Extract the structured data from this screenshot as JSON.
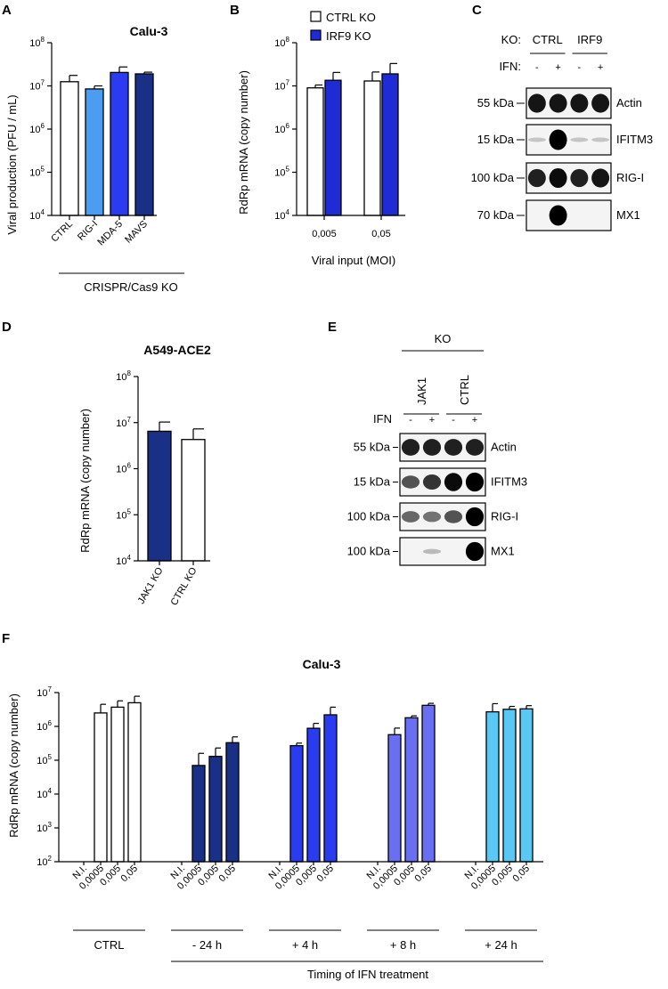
{
  "panels": {
    "A": "A",
    "B": "B",
    "C": "C",
    "D": "D",
    "E": "E",
    "F": "F"
  },
  "chart_data": [
    {
      "id": "A",
      "type": "bar",
      "title": "Calu-3",
      "ylabel": "Viral production (PFU / mL)",
      "yscale": "log",
      "ylim": [
        10000,
        100000000
      ],
      "categories": [
        "CTRL",
        "RIG-I",
        "MDA-5",
        "MAVS"
      ],
      "group_label": "CRISPR/Cas9 KO",
      "series": [
        {
          "values": [
            12500000,
            8500000,
            20500000,
            19000000
          ],
          "errors": [
            5000000,
            1500000,
            7000000,
            1800000
          ]
        }
      ],
      "colors": [
        "#ffffff",
        "#4a9df0",
        "#2b3cf0",
        "#1a2f86"
      ]
    },
    {
      "id": "B",
      "type": "bar",
      "ylabel": "RdRp mRNA (copy number)",
      "xlabel": "Viral input (MOI)",
      "yscale": "log",
      "ylim": [
        10000,
        100000000
      ],
      "categories": [
        "0,005",
        "0,05"
      ],
      "series": [
        {
          "name": "CTRL KO",
          "color": "#ffffff",
          "values": [
            9000000,
            13000000
          ],
          "errors": [
            1500000,
            8000000
          ]
        },
        {
          "name": "IRF9 KO",
          "color": "#1f2bd4",
          "values": [
            13500000,
            19000000
          ],
          "errors": [
            7000000,
            14000000
          ]
        }
      ],
      "legend": "top"
    },
    {
      "id": "D",
      "type": "bar",
      "title": "A549-ACE2",
      "ylabel": "RdRp mRNA (copy number)",
      "yscale": "log",
      "ylim": [
        10000,
        100000000
      ],
      "categories": [
        "JAK1 KO",
        "CTRL KO"
      ],
      "series": [
        {
          "values": [
            6500000,
            4300000
          ],
          "errors": [
            3800000,
            3000000
          ]
        }
      ],
      "colors": [
        "#1a2f86",
        "#ffffff"
      ]
    },
    {
      "id": "F",
      "type": "bar",
      "title": "Calu-3",
      "ylabel": "RdRp mRNA (copy number)",
      "yscale": "log",
      "ylim": [
        100,
        10000000
      ],
      "tick_labels": [
        "N.I.",
        "0,0005",
        "0,005",
        "0,05"
      ],
      "group_label": "Timing of IFN treatment",
      "groups": [
        {
          "label": "CTRL",
          "color": "#ffffff",
          "values": [
            null,
            2500000,
            3700000,
            5000000
          ],
          "errors": [
            null,
            2000000,
            2000000,
            2800000
          ]
        },
        {
          "label": "- 24 h",
          "color": "#1a2f86",
          "values": [
            null,
            70000,
            130000,
            330000
          ],
          "errors": [
            null,
            90000,
            100000,
            160000
          ]
        },
        {
          "label": "+ 4 h",
          "color": "#2b3cf0",
          "values": [
            null,
            270000,
            880000,
            2200000
          ],
          "errors": [
            null,
            50000,
            350000,
            1500000
          ]
        },
        {
          "label": "+ 8 h",
          "color": "#6a6ef0",
          "values": [
            null,
            570000,
            1800000,
            4200000
          ],
          "errors": [
            null,
            320000,
            250000,
            600000
          ]
        },
        {
          "label": "+ 24 h",
          "color": "#5ac8f5",
          "values": [
            null,
            2700000,
            3200000,
            3300000
          ],
          "errors": [
            null,
            2000000,
            700000,
            800000
          ]
        }
      ]
    }
  ],
  "blots": [
    {
      "id": "C",
      "ko_label": "KO:",
      "ko_groups": [
        "CTRL",
        "IRF9"
      ],
      "ifn_label": "IFN:",
      "ifn_signs": [
        "-",
        "+",
        "-",
        "+"
      ],
      "rows": [
        {
          "marker": "55 kDa",
          "protein": "Actin",
          "intensity": [
            0.9,
            0.9,
            0.9,
            0.9
          ]
        },
        {
          "marker": "15 kDa",
          "protein": "IFITM3",
          "intensity": [
            0.05,
            1.0,
            0.05,
            0.05
          ]
        },
        {
          "marker": "100 kDa",
          "protein": "RIG-I",
          "intensity": [
            0.85,
            0.95,
            0.85,
            0.9
          ]
        },
        {
          "marker": "70 kDa",
          "protein": "MX1",
          "intensity": [
            0.0,
            1.0,
            0.0,
            0.0
          ]
        }
      ]
    },
    {
      "id": "E",
      "ko_label": "KO",
      "ko_groups": [
        "JAK1",
        "CTRL"
      ],
      "ifn_label": "IFN",
      "ifn_signs": [
        "-",
        "+",
        "-",
        "+"
      ],
      "rows": [
        {
          "marker": "55 kDa",
          "protein": "Actin",
          "intensity": [
            0.85,
            0.85,
            0.85,
            0.85
          ]
        },
        {
          "marker": "15 kDa",
          "protein": "IFITM3",
          "intensity": [
            0.6,
            0.75,
            0.95,
            1.0
          ]
        },
        {
          "marker": "100 kDa",
          "protein": "RIG-I",
          "intensity": [
            0.5,
            0.45,
            0.6,
            1.0
          ]
        },
        {
          "marker": "100 kDa",
          "protein": "MX1",
          "intensity": [
            0.0,
            0.1,
            0.0,
            1.0
          ]
        }
      ]
    }
  ]
}
